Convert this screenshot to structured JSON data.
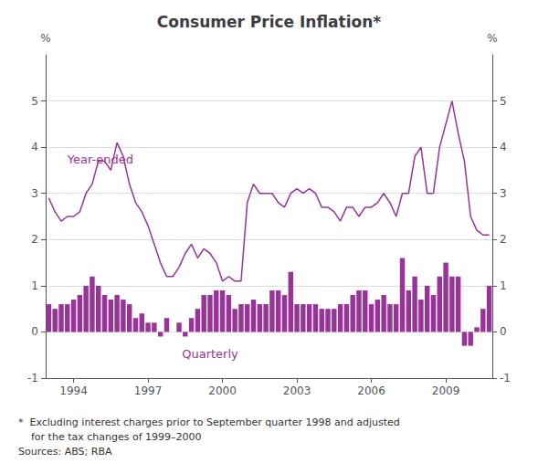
{
  "chart_data": {
    "type": "bar",
    "title": "Consumer Price Inflation*",
    "color": "#993399",
    "categories": [
      null,
      null,
      null,
      null,
      "1994",
      null,
      null,
      null,
      null,
      null,
      null,
      null,
      null,
      null,
      null,
      null,
      "1997",
      null,
      null,
      null,
      null,
      null,
      null,
      null,
      null,
      null,
      null,
      null,
      "2000",
      null,
      null,
      null,
      null,
      null,
      null,
      null,
      null,
      null,
      null,
      null,
      "2003",
      null,
      null,
      null,
      null,
      null,
      null,
      null,
      null,
      null,
      null,
      null,
      "2006",
      null,
      null,
      null,
      null,
      null,
      null,
      null,
      null,
      null,
      null,
      null,
      "2009",
      null,
      null,
      null,
      null,
      null,
      null,
      null
    ],
    "series": [
      {
        "type": "bar",
        "axis": "y",
        "values": [
          0.6,
          0.5,
          0.6,
          0.6,
          0.7,
          0.8,
          1.0,
          1.2,
          1.0,
          0.8,
          0.7,
          0.8,
          0.7,
          0.6,
          0.3,
          0.4,
          0.2,
          0.2,
          -0.1,
          0.3,
          0.0,
          0.2,
          -0.1,
          0.3,
          0.5,
          0.8,
          0.8,
          0.9,
          0.9,
          0.8,
          0.5,
          0.6,
          0.6,
          0.7,
          0.6,
          0.6,
          0.9,
          0.9,
          0.8,
          1.3,
          0.6,
          0.6,
          0.6,
          0.6,
          0.5,
          0.5,
          0.5,
          0.6,
          0.6,
          0.8,
          0.9,
          0.9,
          0.6,
          0.7,
          0.8,
          0.6,
          0.6,
          1.6,
          0.9,
          1.2,
          0.7,
          1.0,
          0.8,
          1.2,
          1.5,
          1.2,
          1.2,
          -0.3,
          -0.3,
          0.1,
          0.5,
          1.0
        ]
      },
      {
        "type": "line",
        "axis": "y",
        "values": [
          2.9,
          2.6,
          2.4,
          2.5,
          2.5,
          2.6,
          3.0,
          3.2,
          3.7,
          3.7,
          3.5,
          4.1,
          3.8,
          3.2,
          2.8,
          2.6,
          2.3,
          1.9,
          1.5,
          1.2,
          1.2,
          1.4,
          1.7,
          1.9,
          1.6,
          1.8,
          1.7,
          1.5,
          1.1,
          1.2,
          1.1,
          1.1,
          2.8,
          3.2,
          3.0,
          3.0,
          3.0,
          2.8,
          2.7,
          3.0,
          3.1,
          3.0,
          3.1,
          3.0,
          2.7,
          2.7,
          2.6,
          2.4,
          2.7,
          2.7,
          2.5,
          2.7,
          2.7,
          2.8,
          3.0,
          2.8,
          2.5,
          3.0,
          3.0,
          3.8,
          4.0,
          3.0,
          3.0,
          4.0,
          4.5,
          5.0,
          4.3,
          3.7,
          2.5,
          2.2,
          2.1,
          2.1
        ]
      }
    ],
    "ylabel": "%",
    "y2label": "%",
    "ylim": [
      -1,
      6
    ],
    "yticks": [
      -1,
      0,
      1,
      2,
      3,
      4,
      5
    ],
    "y2lim": [
      -1,
      6
    ],
    "y2ticks": [
      -1,
      0,
      1,
      2,
      3,
      4,
      5
    ],
    "grid": true,
    "annotations": [
      {
        "text": "Year-ended",
        "x": 3,
        "y": 3.6
      },
      {
        "text": "Quarterly",
        "x": 26,
        "y": -0.6
      }
    ],
    "footnotes": [
      "*  Excluding interest charges prior to September quarter 1998 and adjusted",
      "    for the tax changes of 1999–2000",
      "Sources: ABS; RBA"
    ]
  }
}
